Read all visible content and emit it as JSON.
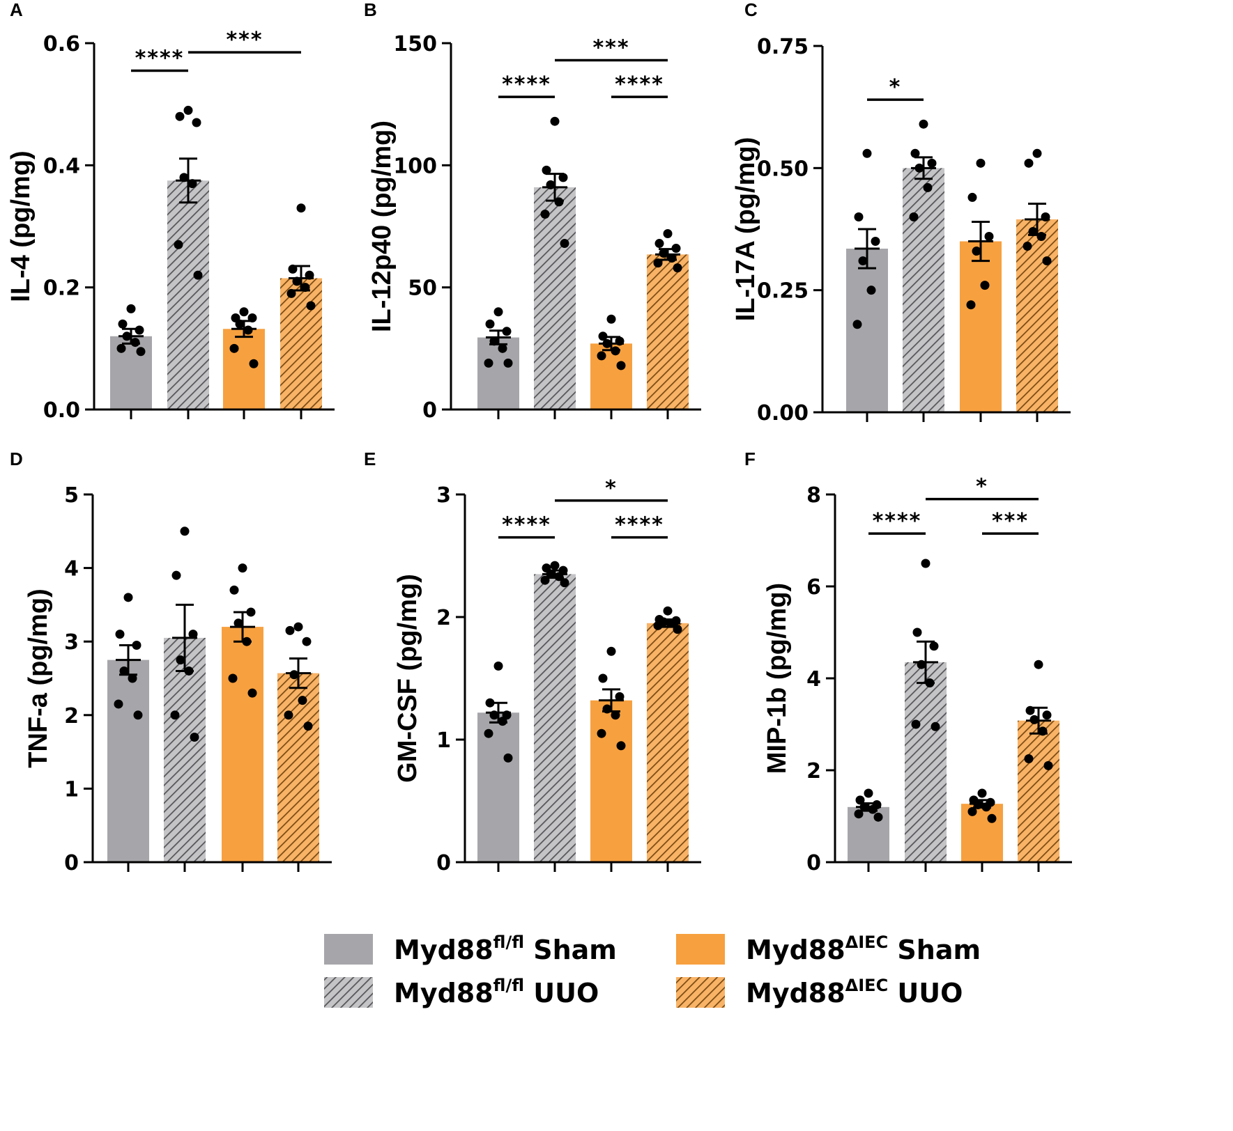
{
  "colors": {
    "gray": "#a6a6aa",
    "gray_hatch_bg": "#c4c4c7",
    "gray_hatch_line": "#555559",
    "orange": "#f7a03f",
    "orange_hatch_bg": "#f9b366",
    "orange_hatch_line": "#7a4a12",
    "ink": "#000000"
  },
  "groups": [
    {
      "key": "fl_sham",
      "fill": "gray",
      "hatch": false
    },
    {
      "key": "fl_uuo",
      "fill": "gray",
      "hatch": true
    },
    {
      "key": "iec_sham",
      "fill": "orange",
      "hatch": false
    },
    {
      "key": "iec_uuo",
      "fill": "orange",
      "hatch": true
    }
  ],
  "legend": [
    {
      "base": "Myd88",
      "sup": "fl/fl",
      "suffix": "Sham",
      "swatch": "gray",
      "hatch": false
    },
    {
      "base": "Myd88",
      "sup": "fl/fl",
      "suffix": "UUO",
      "swatch": "gray",
      "hatch": true
    },
    {
      "base": "Myd88",
      "sup": "ΔIEC",
      "suffix": "Sham",
      "swatch": "orange",
      "hatch": false
    },
    {
      "base": "Myd88",
      "sup": "ΔIEC",
      "suffix": "UUO",
      "swatch": "orange",
      "hatch": true
    }
  ],
  "chart_data": [
    {
      "panel": "A",
      "type": "bar",
      "ylabel": "IL-4 (pg/mg)",
      "ylim": [
        0,
        0.6
      ],
      "ticks": [
        0,
        0.2,
        0.4,
        0.6
      ],
      "tick_labels": [
        "0.0",
        "0.2",
        "0.4",
        "0.6"
      ],
      "means": [
        0.12,
        0.375,
        0.132,
        0.215
      ],
      "sem": [
        0.012,
        0.036,
        0.013,
        0.02
      ],
      "points": [
        [
          0.165,
          0.14,
          0.13,
          0.12,
          0.11,
          0.1,
          0.095
        ],
        [
          0.49,
          0.48,
          0.47,
          0.38,
          0.37,
          0.27,
          0.22
        ],
        [
          0.16,
          0.15,
          0.15,
          0.14,
          0.13,
          0.1,
          0.075
        ],
        [
          0.33,
          0.23,
          0.22,
          0.21,
          0.2,
          0.19,
          0.17
        ]
      ],
      "significance": [
        {
          "from": 0,
          "to": 1,
          "label": "****",
          "level": 0.555
        },
        {
          "from": 1,
          "to": 3,
          "label": "***",
          "level": 0.585
        }
      ]
    },
    {
      "panel": "B",
      "type": "bar",
      "ylabel": "IL-12p40 (pg/mg)",
      "ylim": [
        0,
        150
      ],
      "ticks": [
        0,
        50,
        100,
        150
      ],
      "tick_labels": [
        "0",
        "50",
        "100",
        "150"
      ],
      "means": [
        29.5,
        91,
        27,
        63.5
      ],
      "sem": [
        2.8,
        5.5,
        2.7,
        2.2
      ],
      "points": [
        [
          40,
          35,
          32,
          28,
          25,
          19,
          19
        ],
        [
          118,
          98,
          95,
          92,
          85,
          80,
          68
        ],
        [
          37,
          30,
          28,
          27,
          24,
          22,
          18
        ],
        [
          72,
          68,
          66,
          64,
          62,
          60,
          58
        ]
      ],
      "significance": [
        {
          "from": 0,
          "to": 1,
          "label": "****",
          "level": 128
        },
        {
          "from": 1,
          "to": 3,
          "label": "***",
          "level": 143
        },
        {
          "from": 2,
          "to": 3,
          "label": "****",
          "level": 128
        }
      ]
    },
    {
      "panel": "C",
      "type": "bar",
      "ylabel": "IL-17A (pg/mg)",
      "ylim": [
        0,
        0.75
      ],
      "ticks": [
        0,
        0.25,
        0.5,
        0.75
      ],
      "tick_labels": [
        "0.00",
        "0.25",
        "0.50",
        "0.75"
      ],
      "means": [
        0.335,
        0.5,
        0.35,
        0.395
      ],
      "sem": [
        0.04,
        0.022,
        0.04,
        0.032
      ],
      "points": [
        [
          0.53,
          0.4,
          0.35,
          0.31,
          0.25,
          0.18
        ],
        [
          0.59,
          0.53,
          0.51,
          0.5,
          0.46,
          0.4
        ],
        [
          0.51,
          0.44,
          0.36,
          0.33,
          0.26,
          0.22
        ],
        [
          0.53,
          0.51,
          0.4,
          0.37,
          0.36,
          0.34,
          0.31
        ]
      ],
      "significance": [
        {
          "from": 0,
          "to": 1,
          "label": "*",
          "level": 0.64
        }
      ]
    },
    {
      "panel": "D",
      "type": "bar",
      "ylabel": "TNF-a (pg/mg)",
      "ylim": [
        0,
        5
      ],
      "ticks": [
        0,
        1,
        2,
        3,
        4,
        5
      ],
      "tick_labels": [
        "0",
        "1",
        "2",
        "3",
        "4",
        "5"
      ],
      "means": [
        2.75,
        3.05,
        3.2,
        2.57
      ],
      "sem": [
        0.2,
        0.45,
        0.2,
        0.2
      ],
      "points": [
        [
          3.6,
          3.1,
          2.95,
          2.6,
          2.5,
          2.15,
          2.0
        ],
        [
          4.5,
          3.9,
          3.1,
          2.75,
          2.6,
          2.0,
          1.7
        ],
        [
          4.0,
          3.7,
          3.4,
          3.25,
          3.0,
          2.5,
          2.3
        ],
        [
          3.2,
          3.15,
          3.0,
          2.55,
          2.2,
          2.0,
          1.85
        ]
      ],
      "significance": []
    },
    {
      "panel": "E",
      "type": "bar",
      "ylabel": "GM-CSF (pg/mg)",
      "ylim": [
        0,
        3
      ],
      "ticks": [
        0,
        1,
        2,
        3
      ],
      "tick_labels": [
        "0",
        "1",
        "2",
        "3"
      ],
      "means": [
        1.22,
        2.35,
        1.32,
        1.95
      ],
      "sem": [
        0.08,
        0.03,
        0.09,
        0.03
      ],
      "points": [
        [
          1.6,
          1.3,
          1.2,
          1.2,
          1.15,
          1.05,
          0.85
        ],
        [
          2.42,
          2.4,
          2.38,
          2.35,
          2.33,
          2.3,
          2.28
        ],
        [
          1.72,
          1.5,
          1.35,
          1.25,
          1.2,
          1.05,
          0.95
        ],
        [
          2.05,
          1.98,
          1.97,
          1.96,
          1.95,
          1.93,
          1.9
        ]
      ],
      "significance": [
        {
          "from": 0,
          "to": 1,
          "label": "****",
          "level": 2.65
        },
        {
          "from": 1,
          "to": 3,
          "label": "*",
          "level": 2.95
        },
        {
          "from": 2,
          "to": 3,
          "label": "****",
          "level": 2.65
        }
      ]
    },
    {
      "panel": "F",
      "type": "bar",
      "ylabel": "MIP-1b (pg/mg)",
      "ylim": [
        0,
        8
      ],
      "ticks": [
        0,
        2,
        4,
        6,
        8
      ],
      "tick_labels": [
        "0",
        "2",
        "4",
        "6",
        "8"
      ],
      "means": [
        1.2,
        4.35,
        1.27,
        3.08
      ],
      "sem": [
        0.08,
        0.45,
        0.08,
        0.28
      ],
      "points": [
        [
          1.5,
          1.35,
          1.25,
          1.2,
          1.15,
          1.05,
          0.98
        ],
        [
          6.5,
          5.0,
          4.7,
          4.3,
          3.9,
          3.0,
          2.95
        ],
        [
          1.5,
          1.35,
          1.3,
          1.25,
          1.2,
          1.1,
          0.95
        ],
        [
          4.3,
          3.3,
          3.2,
          3.1,
          2.85,
          2.25,
          2.1
        ]
      ],
      "significance": [
        {
          "from": 0,
          "to": 1,
          "label": "****",
          "level": 7.15
        },
        {
          "from": 1,
          "to": 3,
          "label": "*",
          "level": 7.9
        },
        {
          "from": 2,
          "to": 3,
          "label": "***",
          "level": 7.15
        }
      ]
    }
  ]
}
